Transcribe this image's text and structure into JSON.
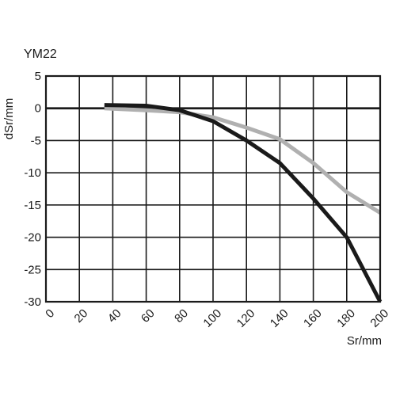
{
  "chart_data": {
    "type": "line",
    "title": "YM22",
    "xlabel": "Sr/mm",
    "ylabel": "dSr/mm",
    "xlim": [
      0,
      200
    ],
    "ylim": [
      -30,
      5
    ],
    "x_ticks": [
      "0",
      "20",
      "40",
      "60",
      "80",
      "100",
      "120",
      "140",
      "160",
      "180",
      "200"
    ],
    "y_ticks": [
      "5",
      "0",
      "-5",
      "-10",
      "-15",
      "-20",
      "-25",
      "-30"
    ],
    "grid": true,
    "series": [
      {
        "color": "#1a1a1a",
        "x": [
          35,
          60,
          80,
          100,
          120,
          140,
          160,
          180,
          200
        ],
        "y": [
          0.5,
          0.4,
          -0.3,
          -2.0,
          -5.0,
          -8.5,
          -14.0,
          -20.0,
          -30.0
        ]
      },
      {
        "color": "#b0b0b0",
        "x": [
          35,
          60,
          80,
          100,
          120,
          140,
          160,
          180,
          200
        ],
        "y": [
          0.0,
          -0.3,
          -0.6,
          -1.4,
          -3.0,
          -4.8,
          -8.5,
          -13.0,
          -16.2
        ]
      }
    ]
  }
}
